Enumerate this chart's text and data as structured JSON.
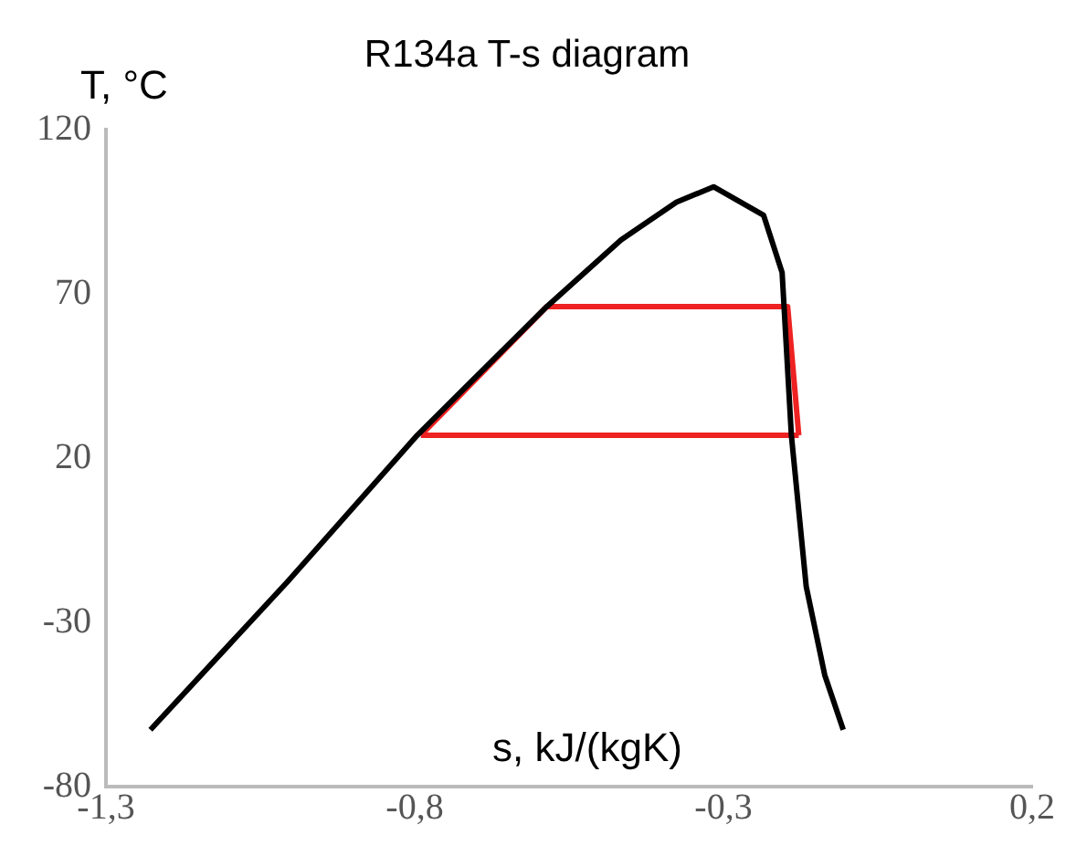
{
  "chart_data": {
    "type": "line",
    "title": "R134a T-s diagram",
    "xlabel": "s, kJ/(kgK)",
    "ylabel": "T, °C",
    "xlim": [
      -1.3,
      0.2
    ],
    "xticks": [
      {
        "value": -1.3,
        "label": "-1,3"
      },
      {
        "value": -0.8,
        "label": "-0,8"
      },
      {
        "value": -0.3,
        "label": "-0,3"
      },
      {
        "value": 0.2,
        "label": "0,2"
      }
    ],
    "ylim": [
      -80,
      120
    ],
    "yticks": [
      -80,
      -30,
      20,
      70,
      120
    ],
    "grid": false,
    "legend": false,
    "marker": "none",
    "line_style": "solid",
    "series": [
      {
        "color": "#000000",
        "x": [
          -1.228,
          -1.006,
          -0.796,
          -0.586,
          -0.466,
          -0.376,
          -0.316,
          -0.235,
          -0.205,
          -0.19,
          -0.166,
          -0.136,
          -0.106
        ],
        "values": [
          -62.7,
          -17.6,
          27,
          66.2,
          86.5,
          98,
          102.7,
          94,
          76.6,
          27,
          -19,
          -46,
          -62.7
        ]
      },
      {
        "color": "#ee2222",
        "x": [
          -0.79,
          -0.586,
          -0.196,
          -0.178
        ],
        "values": [
          27,
          66.2,
          66.2,
          27
        ]
      },
      {
        "color": "#ee2222",
        "x": [
          -0.79,
          -0.178
        ],
        "values": [
          27,
          27
        ]
      }
    ]
  }
}
